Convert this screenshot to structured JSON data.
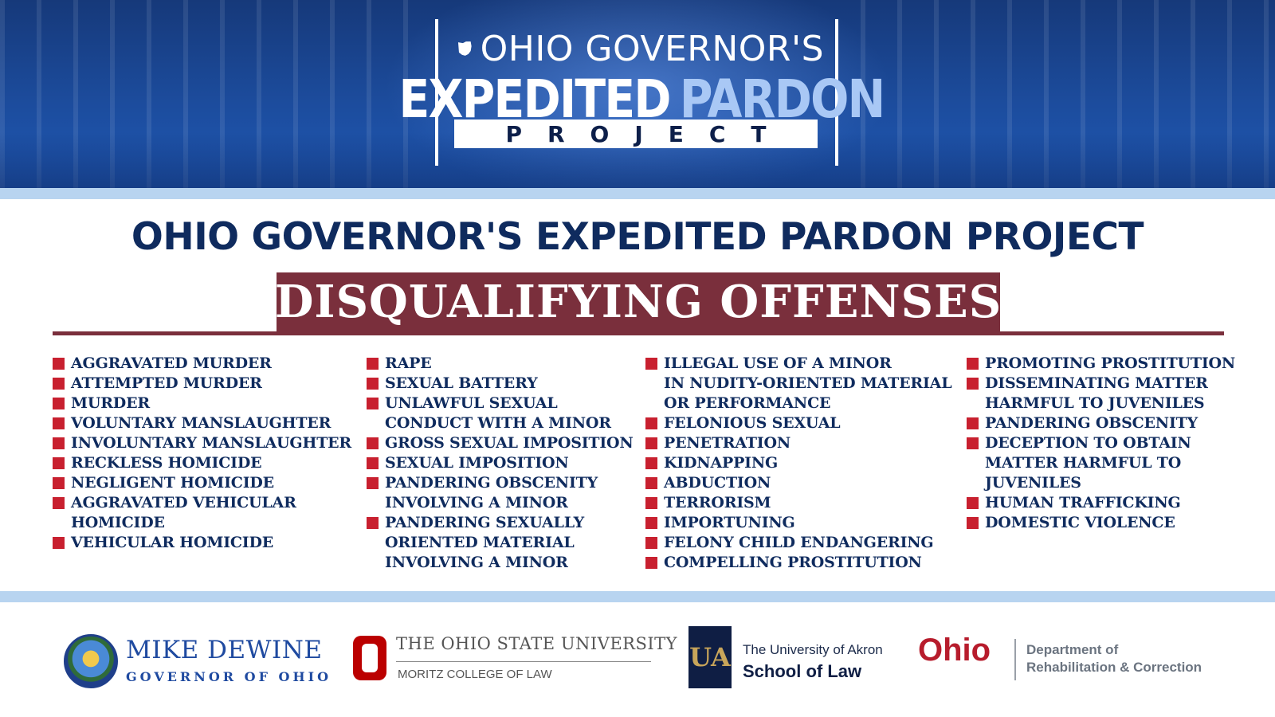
{
  "header": {
    "line1": "OHIO GOVERNOR'S",
    "line2_white": "EXPEDITED",
    "line2_blue": "PARDON",
    "line3": "PROJECT"
  },
  "main_title": "OHIO GOVERNOR'S EXPEDITED PARDON PROJECT",
  "section_title": "DISQUALIFYING OFFENSES",
  "columns": [
    {
      "items": [
        {
          "lines": [
            "AGGRAVATED MURDER"
          ]
        },
        {
          "lines": [
            "ATTEMPTED MURDER"
          ]
        },
        {
          "lines": [
            "MURDER"
          ]
        },
        {
          "lines": [
            "VOLUNTARY MANSLAUGHTER"
          ]
        },
        {
          "lines": [
            "INVOLUNTARY MANSLAUGHTER"
          ]
        },
        {
          "lines": [
            "RECKLESS HOMICIDE"
          ]
        },
        {
          "lines": [
            "NEGLIGENT HOMICIDE"
          ]
        },
        {
          "lines": [
            "AGGRAVATED VEHICULAR",
            "HOMICIDE"
          ]
        },
        {
          "lines": [
            "VEHICULAR HOMICIDE"
          ]
        }
      ]
    },
    {
      "items": [
        {
          "lines": [
            "RAPE"
          ]
        },
        {
          "lines": [
            "SEXUAL BATTERY"
          ]
        },
        {
          "lines": [
            "UNLAWFUL SEXUAL",
            "CONDUCT WITH A MINOR"
          ]
        },
        {
          "lines": [
            "GROSS SEXUAL IMPOSITION"
          ]
        },
        {
          "lines": [
            "SEXUAL IMPOSITION"
          ]
        },
        {
          "lines": [
            "PANDERING OBSCENITY",
            "INVOLVING A MINOR"
          ]
        },
        {
          "lines": [
            "PANDERING SEXUALLY",
            "ORIENTED MATERIAL",
            "INVOLVING A MINOR"
          ]
        }
      ]
    },
    {
      "items": [
        {
          "lines": [
            "ILLEGAL USE OF A MINOR",
            "IN NUDITY-ORIENTED MATERIAL",
            "OR PERFORMANCE"
          ]
        },
        {
          "lines": [
            "FELONIOUS SEXUAL"
          ]
        },
        {
          "lines": [
            "PENETRATION"
          ]
        },
        {
          "lines": [
            "KIDNAPPING"
          ]
        },
        {
          "lines": [
            "ABDUCTION"
          ]
        },
        {
          "lines": [
            "TERRORISM"
          ]
        },
        {
          "lines": [
            "IMPORTUNING"
          ]
        },
        {
          "lines": [
            "FELONY CHILD ENDANGERING"
          ]
        },
        {
          "lines": [
            "COMPELLING PROSTITUTION"
          ]
        }
      ]
    },
    {
      "items": [
        {
          "lines": [
            "PROMOTING PROSTITUTION"
          ]
        },
        {
          "lines": [
            "DISSEMINATING MATTER",
            "HARMFUL TO JUVENILES"
          ]
        },
        {
          "lines": [
            "PANDERING OBSCENITY"
          ]
        },
        {
          "lines": [
            "DECEPTION TO OBTAIN",
            "MATTER HARMFUL TO",
            "JUVENILES"
          ]
        },
        {
          "lines": [
            "HUMAN TRAFFICKING"
          ]
        },
        {
          "lines": [
            "DOMESTIC VIOLENCE"
          ]
        }
      ]
    }
  ],
  "footer": {
    "dewine_name": "MIKE DEWINE",
    "dewine_title": "GOVERNOR OF OHIO",
    "osu_name": "THE OHIO STATE UNIVERSITY",
    "osu_sub": "MORITZ COLLEGE OF LAW",
    "ua_letters": "UA",
    "ua_line1": "The University of Akron",
    "ua_line2": "School of Law",
    "ohio_word": "Ohio",
    "drc_line1": "Department of",
    "drc_line2": "Rehabilitation & Correction"
  },
  "colors": {
    "navy": "#0f2b5e",
    "maroon": "#7a2f3c",
    "bullet_red": "#c8202f",
    "stripe_blue": "#b8d4f0",
    "banner_blue": "#1c4c9d"
  },
  "icons": [
    "ohio-state-shape-icon",
    "square-bullet-icon",
    "ohio-seal-icon",
    "block-o-icon",
    "ua-monogram-icon"
  ]
}
